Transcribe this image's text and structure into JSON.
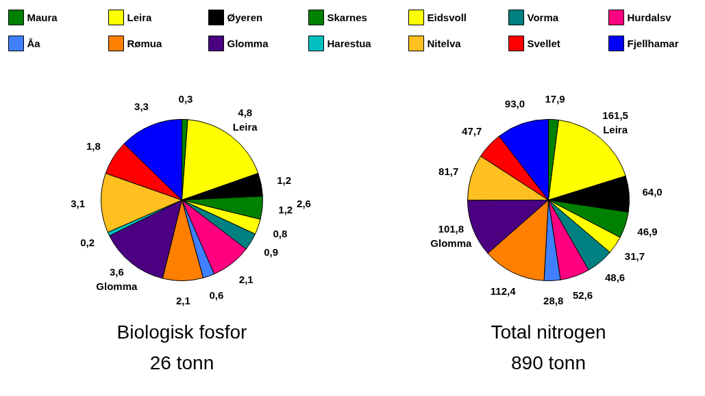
{
  "chart_data": [
    {
      "type": "pie",
      "title": "Biologisk fosfor",
      "subtitle": "26 tonn",
      "legend": "top",
      "categories": [
        "Maura",
        "Leira",
        "Øyeren",
        "Skarnes",
        "Eidsvoll",
        "Vorma",
        "Hurdalsv",
        "Åa",
        "Rømua",
        "Glomma",
        "Harestua",
        "Nitelva",
        "Svellet",
        "Fjellhamar"
      ],
      "values": [
        0.3,
        4.8,
        1.2,
        1.2,
        0.8,
        0.9,
        2.1,
        0.6,
        2.1,
        3.6,
        0.2,
        3.1,
        1.8,
        3.3
      ],
      "value_labels": [
        "0,3",
        "4,8\nLeira",
        "1,2",
        "1,2",
        "0,8",
        "0,9",
        "2,1",
        "0,6",
        "2,1",
        "3,6\nGlomma",
        "0,2",
        "3,1",
        "1,8",
        "3,3"
      ],
      "colors": [
        "#008000",
        "#ffff00",
        "#000000",
        "#008000",
        "#ffff00",
        "#008080",
        "#ff0080",
        "#4080ff",
        "#ff8000",
        "#4b0082",
        "#00c0c0",
        "#ffc020",
        "#ff0000",
        "#0000ff"
      ],
      "annotations": [
        "2,6"
      ]
    },
    {
      "type": "pie",
      "title": "Total nitrogen",
      "subtitle": "890 tonn",
      "categories": [
        null,
        null,
        null,
        null,
        null,
        null,
        null,
        null,
        null,
        null,
        null,
        null,
        null,
        null
      ],
      "values": [
        17.9,
        161.5,
        64.0,
        46.9,
        31.7,
        48.6,
        52.6,
        28.8,
        112.4,
        101.8,
        null,
        81.7,
        47.7,
        93.0
      ],
      "value_labels": [
        "17,9",
        "161,5\nLeira",
        "64,0",
        "46,9",
        "31,7",
        "48,6",
        "52,6",
        "28,8",
        "112,4",
        "101,8\nGlomma",
        null,
        "81,7",
        "47,7",
        "93,0"
      ],
      "colors": [
        "#008000",
        "#ffff00",
        "#000000",
        "#008000",
        "#ffff00",
        "#008080",
        "#ff0080",
        "#4080ff",
        "#ff8000",
        "#4b0082",
        "#00c0c0",
        "#ffc020",
        "#ff0000",
        "#0000ff"
      ]
    }
  ]
}
